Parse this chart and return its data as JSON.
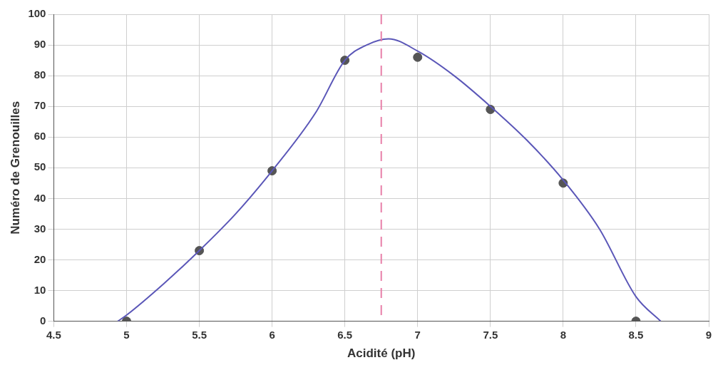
{
  "chart_data": {
    "type": "scatter",
    "xlabel": "Acidité (pH)",
    "ylabel": "Numéro de Grenouilles",
    "xlim": [
      4.5,
      9
    ],
    "xticks": [
      4.5,
      5,
      5.5,
      6,
      6.5,
      7,
      7.5,
      8,
      8.5,
      9
    ],
    "ylim": [
      0,
      100
    ],
    "yticks": [
      0,
      10,
      20,
      30,
      40,
      50,
      60,
      70,
      80,
      90,
      100
    ],
    "grid": true,
    "legend": false,
    "series": [
      {
        "type": "line",
        "color": "#5b57b8",
        "marker": "none",
        "x": [
          4.94,
          5,
          5.25,
          5.5,
          5.75,
          6,
          6.3,
          6.5,
          6.65,
          6.8,
          7,
          7.25,
          7.5,
          7.75,
          8,
          8.25,
          8.5,
          8.67
        ],
        "values": [
          0,
          2,
          12,
          23,
          35,
          49,
          68,
          85,
          90,
          92,
          88,
          80,
          70,
          59,
          46,
          30,
          8,
          0
        ]
      },
      {
        "color": "#555555",
        "marker": "circle",
        "x": [
          5,
          5.5,
          6,
          6.5,
          7,
          7.5,
          8,
          8.5
        ],
        "values": [
          0,
          23,
          49,
          85,
          86,
          69,
          45,
          0
        ]
      }
    ],
    "ref_lines": [
      {
        "axis": "x",
        "value": 6.75,
        "color": "#e87fa8",
        "line_style": "dashed"
      }
    ]
  }
}
